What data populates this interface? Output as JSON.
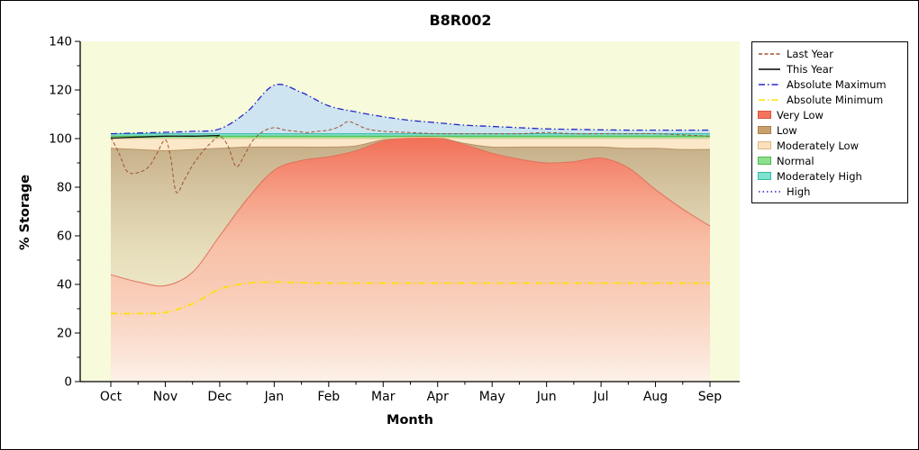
{
  "chart_data": {
    "type": "area",
    "title": "B8R002",
    "xlabel": "Month",
    "ylabel": "% Storage",
    "ylim": [
      0,
      140
    ],
    "ytick_step": 20,
    "ytick_minor": 10,
    "months": [
      "Oct",
      "Nov",
      "Dec",
      "Jan",
      "Feb",
      "Mar",
      "Apr",
      "May",
      "Jun",
      "Jul",
      "Aug",
      "Sep"
    ],
    "colors": {
      "plot_bg": "#f7fadb",
      "axis": "#000000"
    },
    "grid_x": [
      0,
      0.5,
      1,
      1.5,
      2,
      2.5,
      3,
      3.5,
      4,
      4.5,
      5,
      5.5,
      6,
      6.5,
      7,
      7.5,
      8,
      8.5,
      9,
      9.5,
      10,
      10.5,
      11
    ],
    "boundaries": {
      "zero": [
        0,
        0,
        0,
        0,
        0,
        0,
        0,
        0,
        0,
        0,
        0,
        0,
        0,
        0,
        0,
        0,
        0,
        0,
        0,
        0,
        0,
        0,
        0
      ],
      "very_low": [
        44,
        41,
        39.5,
        45,
        60,
        75,
        87,
        91,
        92.5,
        95,
        99,
        100.5,
        100.5,
        97.5,
        94,
        91.5,
        90,
        90.5,
        92,
        88,
        79,
        71,
        64
      ],
      "low": [
        96,
        95.5,
        95,
        95.5,
        96,
        96.5,
        96.5,
        96.5,
        96.5,
        97,
        99.5,
        100.5,
        100.5,
        98,
        96.5,
        96.5,
        96.5,
        96.5,
        96.5,
        96,
        96,
        95.5,
        95.5
      ],
      "mod_low": [
        100,
        100,
        100,
        100,
        100,
        100,
        100,
        100,
        100,
        100,
        100,
        100.5,
        100.5,
        100,
        100,
        100,
        100,
        100,
        100,
        100,
        100,
        100,
        100
      ],
      "normal": [
        101,
        101,
        101,
        101,
        101,
        101,
        101,
        101,
        101,
        101,
        101,
        101,
        101,
        101,
        101,
        101,
        101,
        101,
        101,
        101,
        101,
        101,
        101
      ],
      "mod_high": [
        102,
        102,
        102,
        102,
        102,
        102,
        102,
        102,
        102,
        102,
        102,
        102,
        102,
        102,
        102,
        102,
        102,
        102,
        102,
        102,
        102,
        102,
        102
      ],
      "high": [
        102,
        102.3,
        102.6,
        103,
        104,
        111,
        122,
        119,
        113.5,
        111,
        109,
        107.5,
        106.5,
        105.5,
        105,
        104.5,
        104,
        103.8,
        103.6,
        103.5,
        103.5,
        103.5,
        103.5
      ]
    },
    "bands": [
      {
        "name": "very-low",
        "label": "Very Low",
        "lower": "zero",
        "upper": "very_low",
        "edge": "#e0715c",
        "gradient": {
          "stops": [
            {
              "offset": 0,
              "color": "#f1644c",
              "opacity": 0.95
            },
            {
              "offset": 0.45,
              "color": "#f89a84",
              "opacity": 0.6
            },
            {
              "offset": 1,
              "color": "#fdf0ea",
              "opacity": 0.85
            }
          ]
        }
      },
      {
        "name": "low",
        "label": "Low",
        "lower": "very_low",
        "upper": "low",
        "edge": "#b99263",
        "gradient": {
          "stops": [
            {
              "offset": 0,
              "color": "#96673a",
              "opacity": 0.55
            },
            {
              "offset": 0.5,
              "color": "#c3a075",
              "opacity": 0.3
            },
            {
              "offset": 1,
              "color": "#e2d3bc",
              "opacity": 0.12
            }
          ]
        }
      },
      {
        "name": "moderately-low",
        "label": "Moderately Low",
        "lower": "low",
        "upper": "mod_low",
        "fill": "#fbe5c6",
        "opacity": 0.9,
        "edge": "#e8cda2"
      },
      {
        "name": "normal",
        "label": "Normal",
        "lower": "mod_low",
        "upper": "normal",
        "fill": "#8ee08e",
        "opacity": 0.95,
        "edge": "#3eb43e"
      },
      {
        "name": "moderately-high",
        "label": "Moderately High",
        "lower": "normal",
        "upper": "mod_high",
        "fill": "#7ee2cf",
        "opacity": 0.95,
        "edge": "#2fb6a3"
      },
      {
        "name": "high",
        "label": "High",
        "lower": "mod_high",
        "upper": "high",
        "fill": "#c9e1f2",
        "opacity": 0.9,
        "edge": "none"
      }
    ],
    "lines": [
      {
        "name": "absolute-minimum",
        "label": "Absolute Minimum",
        "color": "#ffe000",
        "width": 1.8,
        "dash": "7 3 1.5 3",
        "x": "grid",
        "y": [
          28,
          28,
          28.5,
          32,
          38,
          40.5,
          41,
          40.7,
          40.5,
          40.5,
          40.5,
          40.5,
          40.5,
          40.5,
          40.5,
          40.5,
          40.5,
          40.5,
          40.5,
          40.5,
          40.5,
          40.5,
          40.5
        ]
      },
      {
        "name": "last-year",
        "label": "Last Year",
        "color": "#a0522d",
        "width": 1,
        "dash": "4 2.5",
        "x": [
          0,
          0.15,
          0.3,
          0.5,
          0.7,
          0.85,
          1.0,
          1.1,
          1.2,
          1.35,
          1.5,
          1.7,
          1.85,
          2.0,
          2.15,
          2.3,
          2.45,
          2.6,
          2.8,
          3.0,
          3.2,
          3.4,
          3.6,
          3.8,
          4.0,
          4.2,
          4.35,
          4.5,
          4.7,
          5.0,
          5.5,
          6.0,
          6.5,
          7.0,
          7.5,
          8.0,
          8.5,
          9.0,
          9.5,
          10.0,
          10.5,
          11.0
        ],
        "y": [
          100.5,
          94,
          86.5,
          86,
          88.5,
          94,
          99.5,
          92,
          78,
          83,
          89,
          95,
          98.5,
          101,
          97,
          88.5,
          93,
          99,
          103,
          104.5,
          103.5,
          103,
          102.5,
          103,
          103.5,
          105,
          107,
          106,
          104,
          103,
          102.5,
          102,
          102,
          102,
          102,
          102.5,
          102,
          102,
          102,
          102,
          101.5,
          101
        ]
      },
      {
        "name": "absolute-maximum",
        "label": "Absolute Maximum",
        "color": "#2626c9",
        "width": 1.3,
        "dash": "7 3 1.5 3",
        "x": "grid",
        "y": [
          102,
          102.3,
          102.6,
          103,
          104,
          111,
          122,
          119,
          113.5,
          111,
          109,
          107.5,
          106.5,
          105.5,
          105,
          104.5,
          104,
          103.8,
          103.6,
          103.5,
          103.5,
          103.5,
          103.5
        ]
      },
      {
        "name": "this-year",
        "label": "This Year",
        "color": "#111111",
        "width": 1.3,
        "dash": "",
        "x": [
          0,
          0.5,
          1,
          1.5,
          2
        ],
        "y": [
          100.2,
          100.6,
          101,
          101,
          101.3
        ]
      }
    ],
    "legend": {
      "items": [
        {
          "label": "Last Year",
          "swatch": "line",
          "color": "#a0522d",
          "dash": "4 2.5"
        },
        {
          "label": "This Year",
          "swatch": "line",
          "color": "#000000",
          "dash": ""
        },
        {
          "label": "Absolute Maximum",
          "swatch": "line",
          "color": "#2626c9",
          "dash": "7 3 1.5 3"
        },
        {
          "label": "Absolute Minimum",
          "swatch": "line",
          "color": "#ffe000",
          "dash": "7 3 1.5 3"
        },
        {
          "label": "Very Low",
          "swatch": "box",
          "color": "#f4745c",
          "border": "#d85540"
        },
        {
          "label": "Low",
          "swatch": "box",
          "color": "#c9a06a",
          "border": "#a87f4f"
        },
        {
          "label": "Moderately Low",
          "swatch": "box",
          "color": "#fbe0bb",
          "border": "#d8b888"
        },
        {
          "label": "Normal",
          "swatch": "box",
          "color": "#8ee08e",
          "border": "#4cb84c"
        },
        {
          "label": "Moderately High",
          "swatch": "box",
          "color": "#7ee2cf",
          "border": "#35b9a4"
        },
        {
          "label": "High",
          "swatch": "line",
          "color": "#2626c9",
          "dash": "1.5 3"
        }
      ]
    }
  }
}
